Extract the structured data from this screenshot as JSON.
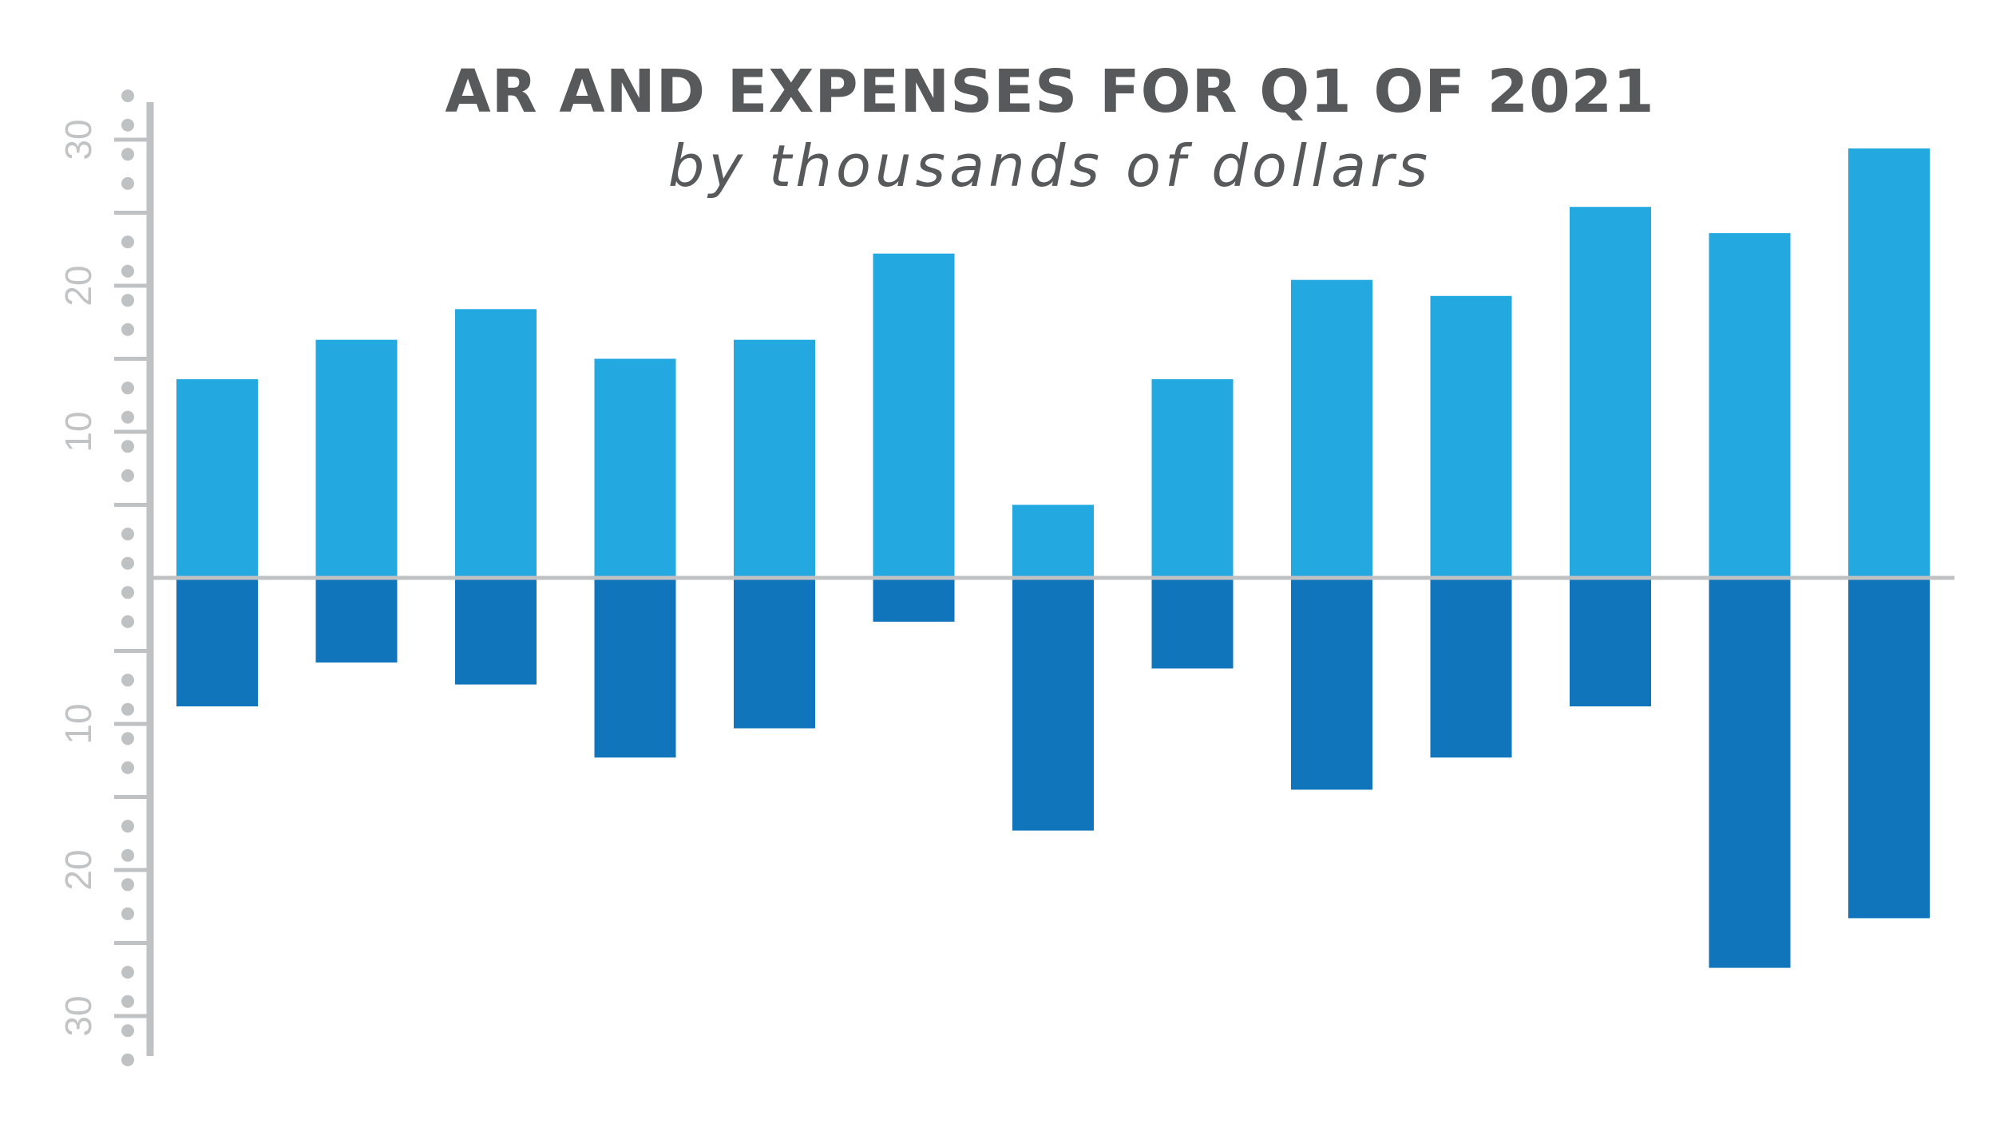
{
  "colors": {
    "ar": "#23a8e0",
    "expenses": "#1175bb",
    "axis": "#c0c1c2",
    "text": "#58595b"
  },
  "chart_data": {
    "type": "bar",
    "title": "AR AND EXPENSES FOR Q1 OF 2021",
    "subtitle": "by thousands of dollars",
    "xlabel": "",
    "ylabel": "",
    "ylim": [
      -33,
      33
    ],
    "grid": false,
    "legend": "none",
    "y_tick_labels": [
      {
        "value": 30,
        "label": "30"
      },
      {
        "value": 20,
        "label": "20"
      },
      {
        "value": 10,
        "label": "10"
      },
      {
        "value": -10,
        "label": "10"
      },
      {
        "value": -20,
        "label": "20"
      },
      {
        "value": -30,
        "label": "30"
      }
    ],
    "series": [
      {
        "values": [
          13.6,
          16.3,
          18.4,
          15.0,
          16.3,
          22.2,
          5.0,
          13.6,
          20.4,
          19.3,
          25.4,
          23.6,
          29.4
        ]
      },
      {
        "values": [
          -8.8,
          -5.8,
          -7.3,
          -12.3,
          -10.3,
          -3.0,
          -17.3,
          -6.2,
          -14.5,
          -12.3,
          -8.8,
          -26.7,
          -23.3
        ]
      }
    ]
  }
}
